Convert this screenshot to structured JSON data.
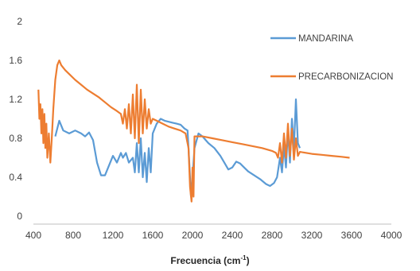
{
  "chart_data": {
    "type": "line",
    "xlabel": "Frecuencia",
    "xlabel_unit": "(cm",
    "xlabel_exp": "-1",
    "xlabel_close": ")",
    "ylabel": "",
    "xlim": [
      400,
      4000
    ],
    "ylim": [
      0,
      2
    ],
    "x_ticks": [
      "400",
      "800",
      "1200",
      "1600",
      "2000",
      "2400",
      "2800",
      "3200",
      "3600",
      "4000"
    ],
    "y_ticks": [
      "0",
      "0.4",
      "0.8",
      "1.2",
      "1.6",
      "2"
    ],
    "grid": false,
    "legend_position": "top-right",
    "series": [
      {
        "name": "MANDARINA",
        "color": "#5B9BD5",
        "points": [
          [
            620,
            0.82
          ],
          [
            660,
            0.98
          ],
          [
            700,
            0.88
          ],
          [
            760,
            0.85
          ],
          [
            820,
            0.88
          ],
          [
            880,
            0.85
          ],
          [
            920,
            0.82
          ],
          [
            960,
            0.86
          ],
          [
            1000,
            0.78
          ],
          [
            1040,
            0.55
          ],
          [
            1080,
            0.42
          ],
          [
            1120,
            0.42
          ],
          [
            1160,
            0.52
          ],
          [
            1200,
            0.62
          ],
          [
            1240,
            0.55
          ],
          [
            1280,
            0.65
          ],
          [
            1300,
            0.6
          ],
          [
            1330,
            0.65
          ],
          [
            1360,
            0.55
          ],
          [
            1400,
            0.6
          ],
          [
            1420,
            0.45
          ],
          [
            1440,
            0.75
          ],
          [
            1460,
            0.45
          ],
          [
            1480,
            0.8
          ],
          [
            1500,
            0.4
          ],
          [
            1520,
            0.65
          ],
          [
            1540,
            0.35
          ],
          [
            1560,
            0.7
          ],
          [
            1580,
            0.45
          ],
          [
            1600,
            0.85
          ],
          [
            1640,
            0.95
          ],
          [
            1680,
            1.0
          ],
          [
            1720,
            0.98
          ],
          [
            1760,
            0.97
          ],
          [
            1800,
            0.96
          ],
          [
            1840,
            0.95
          ],
          [
            1880,
            0.94
          ],
          [
            1920,
            0.9
          ],
          [
            1950,
            0.88
          ],
          [
            1970,
            0.5
          ],
          [
            1985,
            0.2
          ],
          [
            2000,
            0.4
          ],
          [
            2020,
            0.7
          ],
          [
            2060,
            0.85
          ],
          [
            2100,
            0.82
          ],
          [
            2160,
            0.75
          ],
          [
            2220,
            0.7
          ],
          [
            2280,
            0.62
          ],
          [
            2320,
            0.55
          ],
          [
            2360,
            0.48
          ],
          [
            2400,
            0.5
          ],
          [
            2440,
            0.56
          ],
          [
            2480,
            0.54
          ],
          [
            2520,
            0.5
          ],
          [
            2560,
            0.46
          ],
          [
            2620,
            0.42
          ],
          [
            2680,
            0.38
          ],
          [
            2740,
            0.33
          ],
          [
            2780,
            0.31
          ],
          [
            2820,
            0.34
          ],
          [
            2850,
            0.4
          ],
          [
            2880,
            0.6
          ],
          [
            2900,
            0.45
          ],
          [
            2920,
            0.72
          ],
          [
            2940,
            0.5
          ],
          [
            2960,
            0.88
          ],
          [
            2980,
            0.55
          ],
          [
            3000,
            1.0
          ],
          [
            3020,
            0.7
          ],
          [
            3040,
            1.2
          ],
          [
            3060,
            0.75
          ],
          [
            3080,
            0.7
          ]
        ]
      },
      {
        "name": "PRECARBONIZACION",
        "color": "#ED7D31",
        "points": [
          [
            450,
            1.3
          ],
          [
            460,
            1.0
          ],
          [
            470,
            1.15
          ],
          [
            480,
            0.85
          ],
          [
            490,
            1.1
          ],
          [
            500,
            0.75
          ],
          [
            510,
            1.05
          ],
          [
            520,
            0.7
          ],
          [
            530,
            0.95
          ],
          [
            540,
            0.6
          ],
          [
            555,
            0.85
          ],
          [
            570,
            0.55
          ],
          [
            585,
            0.8
          ],
          [
            600,
            1.1
          ],
          [
            620,
            1.4
          ],
          [
            640,
            1.55
          ],
          [
            660,
            1.6
          ],
          [
            680,
            1.55
          ],
          [
            720,
            1.5
          ],
          [
            760,
            1.46
          ],
          [
            820,
            1.4
          ],
          [
            880,
            1.35
          ],
          [
            940,
            1.3
          ],
          [
            1000,
            1.26
          ],
          [
            1060,
            1.22
          ],
          [
            1120,
            1.17
          ],
          [
            1180,
            1.12
          ],
          [
            1240,
            1.08
          ],
          [
            1280,
            1.05
          ],
          [
            1300,
            0.95
          ],
          [
            1320,
            1.1
          ],
          [
            1340,
            0.9
          ],
          [
            1360,
            1.15
          ],
          [
            1380,
            0.85
          ],
          [
            1400,
            1.25
          ],
          [
            1420,
            0.8
          ],
          [
            1440,
            1.35
          ],
          [
            1460,
            0.75
          ],
          [
            1480,
            1.3
          ],
          [
            1500,
            0.85
          ],
          [
            1520,
            1.2
          ],
          [
            1540,
            0.9
          ],
          [
            1560,
            1.1
          ],
          [
            1580,
            0.95
          ],
          [
            1600,
            1.0
          ],
          [
            1640,
            0.98
          ],
          [
            1700,
            0.95
          ],
          [
            1760,
            0.92
          ],
          [
            1820,
            0.9
          ],
          [
            1880,
            0.88
          ],
          [
            1930,
            0.85
          ],
          [
            1960,
            0.7
          ],
          [
            1975,
            0.3
          ],
          [
            1990,
            0.15
          ],
          [
            2000,
            0.5
          ],
          [
            2010,
            0.2
          ],
          [
            2020,
            0.82
          ],
          [
            2100,
            0.82
          ],
          [
            2200,
            0.8
          ],
          [
            2300,
            0.78
          ],
          [
            2400,
            0.76
          ],
          [
            2500,
            0.74
          ],
          [
            2600,
            0.72
          ],
          [
            2700,
            0.7
          ],
          [
            2800,
            0.67
          ],
          [
            2840,
            0.65
          ],
          [
            2860,
            0.6
          ],
          [
            2880,
            0.75
          ],
          [
            2900,
            0.55
          ],
          [
            2920,
            0.85
          ],
          [
            2940,
            0.6
          ],
          [
            2960,
            0.95
          ],
          [
            2980,
            0.62
          ],
          [
            3000,
            0.9
          ],
          [
            3020,
            0.58
          ],
          [
            3040,
            0.8
          ],
          [
            3060,
            0.62
          ],
          [
            3080,
            0.66
          ],
          [
            3200,
            0.64
          ],
          [
            3300,
            0.63
          ],
          [
            3400,
            0.62
          ],
          [
            3500,
            0.61
          ],
          [
            3580,
            0.6
          ]
        ]
      }
    ]
  }
}
